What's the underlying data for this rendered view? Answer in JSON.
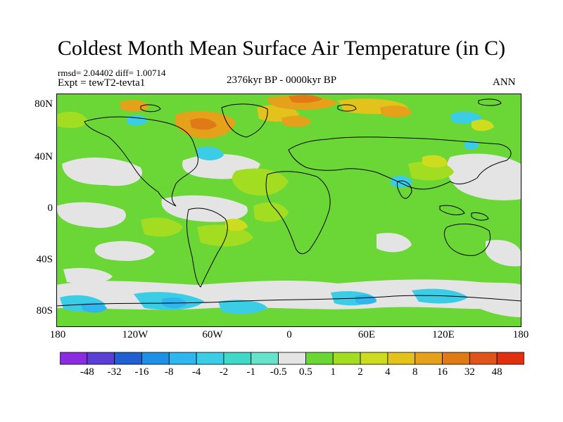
{
  "title": "Coldest Month Mean Surface Air Temperature (in C)",
  "stats": "rmsd= 2.04402 diff= 1.00714",
  "experiment": "Expt = tewT2-tevta1",
  "period": "2376kyr BP - 0000kyr BP",
  "season": "ANN",
  "lat_ticks": [
    "80N",
    "40N",
    "0",
    "40S",
    "80S"
  ],
  "lon_ticks": [
    "180",
    "120W",
    "60W",
    "0",
    "60E",
    "120E",
    "180"
  ],
  "colorbar": {
    "labels": [
      "-48",
      "-32",
      "-16",
      "-8",
      "-4",
      "-2",
      "-1",
      "-0.5",
      "0.5",
      "1",
      "2",
      "4",
      "8",
      "16",
      "32",
      "48"
    ],
    "colors": [
      "#8a2be2",
      "#5a3fd6",
      "#1f5fd0",
      "#1e90e6",
      "#2eb6ef",
      "#3ccde6",
      "#40d9c8",
      "#66e3c9",
      "#e4e4e4",
      "#6bd737",
      "#a3dd22",
      "#cddc1e",
      "#e3c21b",
      "#e6a11a",
      "#e07a16",
      "#e0541a",
      "#e0300f"
    ]
  },
  "colors": {
    "background_field": "#6bd737",
    "ocean_neutral": "#e4e4e4",
    "warm": "#e6a11a",
    "cool": "#2eb6ef"
  }
}
